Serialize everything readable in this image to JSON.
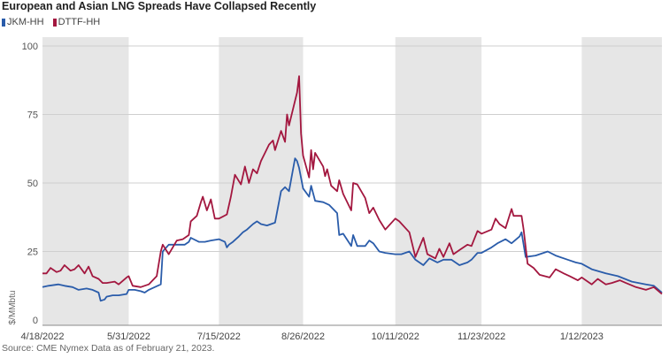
{
  "title": "European and Asian LNG Spreads Have Collapsed Recently",
  "source": "Source: CME Nymex Data as of February 21, 2023.",
  "colors": {
    "JKM-HH": "#2a5caa",
    "DTTF-HH": "#a3173f",
    "shade": "#e6e6e6",
    "grid": "#cfcfcf"
  },
  "chart_data": {
    "type": "line",
    "title": "European and Asian LNG Spreads Have Collapsed Recently",
    "ylabel": "$/MMbtu",
    "xlabel": "",
    "ylim": [
      0,
      100
    ],
    "yticks": [
      0,
      25,
      50,
      75,
      100
    ],
    "xlim": [
      "2022-04-18",
      "2023-02-21"
    ],
    "xtick_labels": [
      "4/18/2022",
      "5/31/2022",
      "7/15/2022",
      "8/26/2022",
      "10/11/2022",
      "11/23/2022",
      "1/12/2023"
    ],
    "xtick_dates": [
      "2022-04-18",
      "2022-05-31",
      "2022-07-15",
      "2022-08-26",
      "2022-10-11",
      "2022-11-23",
      "2023-01-12"
    ],
    "shaded_ranges": [
      [
        "2022-04-18",
        "2022-05-31"
      ],
      [
        "2022-07-15",
        "2022-08-26"
      ],
      [
        "2022-10-11",
        "2022-11-23"
      ],
      [
        "2023-01-12",
        "2023-02-21"
      ]
    ],
    "grid": "horizontal",
    "legend_position": "top-left",
    "series": [
      {
        "name": "JKM-HH",
        "points": [
          [
            "2022-04-18",
            12
          ],
          [
            "2022-04-21",
            12.5
          ],
          [
            "2022-04-26",
            13
          ],
          [
            "2022-04-29",
            12.5
          ],
          [
            "2022-05-03",
            12
          ],
          [
            "2022-05-06",
            11
          ],
          [
            "2022-05-10",
            11.5
          ],
          [
            "2022-05-13",
            11
          ],
          [
            "2022-05-16",
            10
          ],
          [
            "2022-05-17",
            7
          ],
          [
            "2022-05-19",
            7.5
          ],
          [
            "2022-05-20",
            8.5
          ],
          [
            "2022-05-23",
            9
          ],
          [
            "2022-05-26",
            9
          ],
          [
            "2022-05-30",
            9.5
          ],
          [
            "2022-05-31",
            11
          ],
          [
            "2022-06-03",
            11
          ],
          [
            "2022-06-06",
            10.5
          ],
          [
            "2022-06-08",
            10
          ],
          [
            "2022-06-10",
            11
          ],
          [
            "2022-06-13",
            12
          ],
          [
            "2022-06-16",
            13
          ],
          [
            "2022-06-17",
            25
          ],
          [
            "2022-06-20",
            27.5
          ],
          [
            "2022-06-24",
            27.5
          ],
          [
            "2022-06-28",
            27.5
          ],
          [
            "2022-06-30",
            28.5
          ],
          [
            "2022-07-01",
            30
          ],
          [
            "2022-07-05",
            28.5
          ],
          [
            "2022-07-08",
            28.5
          ],
          [
            "2022-07-11",
            29
          ],
          [
            "2022-07-15",
            29.5
          ],
          [
            "2022-07-18",
            28.5
          ],
          [
            "2022-07-19",
            26.5
          ],
          [
            "2022-07-20",
            27.5
          ],
          [
            "2022-07-22",
            28.5
          ],
          [
            "2022-07-25",
            30.5
          ],
          [
            "2022-07-27",
            32
          ],
          [
            "2022-07-29",
            33
          ],
          [
            "2022-08-01",
            35
          ],
          [
            "2022-08-03",
            36
          ],
          [
            "2022-08-05",
            35
          ],
          [
            "2022-08-08",
            34.5
          ],
          [
            "2022-08-10",
            35
          ],
          [
            "2022-08-12",
            35.5
          ],
          [
            "2022-08-15",
            47
          ],
          [
            "2022-08-17",
            48.5
          ],
          [
            "2022-08-19",
            47
          ],
          [
            "2022-08-22",
            59
          ],
          [
            "2022-08-23",
            58
          ],
          [
            "2022-08-24",
            55.5
          ],
          [
            "2022-08-26",
            48
          ],
          [
            "2022-08-29",
            45
          ],
          [
            "2022-08-30",
            49
          ],
          [
            "2022-09-01",
            43.5
          ],
          [
            "2022-09-05",
            43
          ],
          [
            "2022-09-08",
            42
          ],
          [
            "2022-09-12",
            39
          ],
          [
            "2022-09-13",
            31
          ],
          [
            "2022-09-15",
            31.5
          ],
          [
            "2022-09-19",
            27
          ],
          [
            "2022-09-20",
            31
          ],
          [
            "2022-09-22",
            27
          ],
          [
            "2022-09-26",
            27
          ],
          [
            "2022-09-28",
            29
          ],
          [
            "2022-09-30",
            28
          ],
          [
            "2022-10-03",
            25
          ],
          [
            "2022-10-06",
            24.5
          ],
          [
            "2022-10-11",
            24
          ],
          [
            "2022-10-14",
            24
          ],
          [
            "2022-10-18",
            25
          ],
          [
            "2022-10-21",
            22
          ],
          [
            "2022-10-25",
            20
          ],
          [
            "2022-10-28",
            22.5
          ],
          [
            "2022-11-01",
            21
          ],
          [
            "2022-11-04",
            22
          ],
          [
            "2022-11-08",
            22
          ],
          [
            "2022-11-12",
            20
          ],
          [
            "2022-11-16",
            21
          ],
          [
            "2022-11-18",
            22
          ],
          [
            "2022-11-21",
            24.5
          ],
          [
            "2022-11-23",
            24.5
          ],
          [
            "2022-11-28",
            26.5
          ],
          [
            "2022-12-01",
            28
          ],
          [
            "2022-12-05",
            29.5
          ],
          [
            "2022-12-08",
            28
          ],
          [
            "2022-12-12",
            30.5
          ],
          [
            "2022-12-13",
            32
          ],
          [
            "2022-12-15",
            23
          ],
          [
            "2022-12-20",
            23.5
          ],
          [
            "2022-12-26",
            25
          ],
          [
            "2022-12-30",
            23.5
          ],
          [
            "2023-01-05",
            22
          ],
          [
            "2023-01-09",
            21
          ],
          [
            "2023-01-12",
            20.5
          ],
          [
            "2023-01-17",
            18.5
          ],
          [
            "2023-01-24",
            17
          ],
          [
            "2023-01-30",
            16
          ],
          [
            "2023-02-06",
            14
          ],
          [
            "2023-02-13",
            13
          ],
          [
            "2023-02-17",
            12.5
          ],
          [
            "2023-02-21",
            10
          ]
        ]
      },
      {
        "name": "DTTF-HH",
        "points": [
          [
            "2022-04-18",
            17
          ],
          [
            "2022-04-20",
            17
          ],
          [
            "2022-04-22",
            19
          ],
          [
            "2022-04-25",
            17.5
          ],
          [
            "2022-04-27",
            18
          ],
          [
            "2022-04-29",
            20
          ],
          [
            "2022-05-02",
            18
          ],
          [
            "2022-05-04",
            18.5
          ],
          [
            "2022-05-06",
            20
          ],
          [
            "2022-05-09",
            17
          ],
          [
            "2022-05-11",
            19.5
          ],
          [
            "2022-05-13",
            16
          ],
          [
            "2022-05-16",
            15
          ],
          [
            "2022-05-18",
            13.5
          ],
          [
            "2022-05-20",
            13.5
          ],
          [
            "2022-05-24",
            14
          ],
          [
            "2022-05-26",
            13
          ],
          [
            "2022-05-30",
            15.5
          ],
          [
            "2022-05-31",
            16
          ],
          [
            "2022-06-02",
            12.5
          ],
          [
            "2022-06-06",
            12
          ],
          [
            "2022-06-10",
            13
          ],
          [
            "2022-06-14",
            16
          ],
          [
            "2022-06-16",
            25
          ],
          [
            "2022-06-17",
            27.5
          ],
          [
            "2022-06-20",
            24
          ],
          [
            "2022-06-22",
            26.5
          ],
          [
            "2022-06-24",
            29
          ],
          [
            "2022-06-27",
            29.5
          ],
          [
            "2022-06-30",
            31
          ],
          [
            "2022-07-01",
            36
          ],
          [
            "2022-07-04",
            38
          ],
          [
            "2022-07-06",
            43
          ],
          [
            "2022-07-07",
            45
          ],
          [
            "2022-07-09",
            40
          ],
          [
            "2022-07-11",
            44
          ],
          [
            "2022-07-13",
            37
          ],
          [
            "2022-07-15",
            37
          ],
          [
            "2022-07-19",
            38.5
          ],
          [
            "2022-07-21",
            45
          ],
          [
            "2022-07-23",
            53
          ],
          [
            "2022-07-26",
            49.5
          ],
          [
            "2022-07-28",
            56
          ],
          [
            "2022-07-30",
            50
          ],
          [
            "2022-08-01",
            55
          ],
          [
            "2022-08-03",
            53.5
          ],
          [
            "2022-08-05",
            58
          ],
          [
            "2022-08-07",
            61
          ],
          [
            "2022-08-09",
            64
          ],
          [
            "2022-08-11",
            65.5
          ],
          [
            "2022-08-12",
            62
          ],
          [
            "2022-08-15",
            69
          ],
          [
            "2022-08-17",
            65
          ],
          [
            "2022-08-18",
            75
          ],
          [
            "2022-08-19",
            71
          ],
          [
            "2022-08-22",
            80
          ],
          [
            "2022-08-23",
            83
          ],
          [
            "2022-08-24",
            89
          ],
          [
            "2022-08-25",
            68
          ],
          [
            "2022-08-26",
            60
          ],
          [
            "2022-08-29",
            52
          ],
          [
            "2022-08-30",
            62
          ],
          [
            "2022-08-31",
            55
          ],
          [
            "2022-09-01",
            61
          ],
          [
            "2022-09-05",
            56
          ],
          [
            "2022-09-06",
            52.5
          ],
          [
            "2022-09-07",
            55
          ],
          [
            "2022-09-09",
            49
          ],
          [
            "2022-09-12",
            47
          ],
          [
            "2022-09-13",
            51
          ],
          [
            "2022-09-15",
            46
          ],
          [
            "2022-09-19",
            40
          ],
          [
            "2022-09-20",
            50
          ],
          [
            "2022-09-22",
            49.5
          ],
          [
            "2022-09-26",
            44.5
          ],
          [
            "2022-09-28",
            39
          ],
          [
            "2022-09-30",
            41
          ],
          [
            "2022-10-03",
            36.5
          ],
          [
            "2022-10-06",
            33
          ],
          [
            "2022-10-11",
            37
          ],
          [
            "2022-10-13",
            36
          ],
          [
            "2022-10-18",
            32
          ],
          [
            "2022-10-21",
            23
          ],
          [
            "2022-10-25",
            30
          ],
          [
            "2022-10-27",
            24
          ],
          [
            "2022-10-31",
            22.5
          ],
          [
            "2022-11-02",
            26
          ],
          [
            "2022-11-04",
            23
          ],
          [
            "2022-11-07",
            28
          ],
          [
            "2022-11-09",
            24
          ],
          [
            "2022-11-12",
            25.5
          ],
          [
            "2022-11-16",
            27.5
          ],
          [
            "2022-11-18",
            27
          ],
          [
            "2022-11-21",
            32.5
          ],
          [
            "2022-11-23",
            31.5
          ],
          [
            "2022-11-28",
            33
          ],
          [
            "2022-11-30",
            37
          ],
          [
            "2022-12-02",
            35
          ],
          [
            "2022-12-05",
            33.5
          ],
          [
            "2022-12-08",
            40.5
          ],
          [
            "2022-12-09",
            38
          ],
          [
            "2022-12-13",
            38
          ],
          [
            "2022-12-14",
            33
          ],
          [
            "2022-12-16",
            20.5
          ],
          [
            "2022-12-19",
            19
          ],
          [
            "2022-12-22",
            16.5
          ],
          [
            "2022-12-27",
            15.5
          ],
          [
            "2022-12-30",
            18.5
          ],
          [
            "2023-01-03",
            17
          ],
          [
            "2023-01-06",
            16
          ],
          [
            "2023-01-10",
            14.5
          ],
          [
            "2023-01-12",
            15.5
          ],
          [
            "2023-01-17",
            13
          ],
          [
            "2023-01-20",
            15
          ],
          [
            "2023-01-24",
            13
          ],
          [
            "2023-01-27",
            13.5
          ],
          [
            "2023-01-31",
            14.5
          ],
          [
            "2023-02-03",
            13.5
          ],
          [
            "2023-02-08",
            12
          ],
          [
            "2023-02-13",
            11
          ],
          [
            "2023-02-17",
            12
          ],
          [
            "2023-02-21",
            9.5
          ]
        ]
      }
    ]
  }
}
